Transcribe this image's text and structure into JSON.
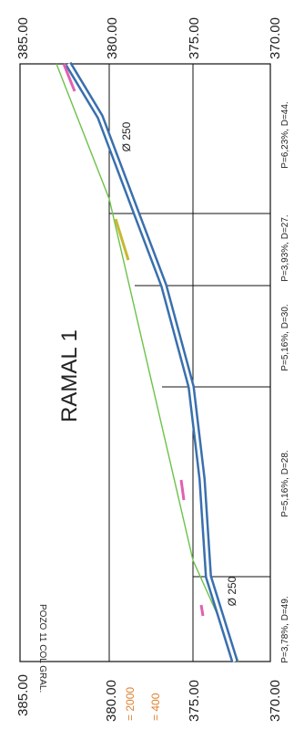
{
  "title": "RAMAL 1",
  "elevation_labels": {
    "top": [
      "385.00",
      "380.00",
      "375.00",
      "370.00"
    ],
    "bottom": [
      "385.00",
      "380.00",
      "375.00",
      "370.00"
    ]
  },
  "scale_notes": [
    "= 2000",
    "= 400"
  ],
  "origin_label": "POZO 11 COL GRAL.",
  "pipe_labels": [
    "Ø 250",
    "Ø 250"
  ],
  "segment_labels": [
    "P=3,78%, D=49.",
    "P=5,16%, D=28.",
    "P=5,16%, D=30.",
    "P=3,93%, D=27.",
    "P=6,23%, D=44."
  ],
  "colors": {
    "pipe": "#3a6fae",
    "pipe_fill": "#ffffff",
    "terrain": "#6cc24a",
    "grid": "#111111",
    "pink_marker": "#e060b0",
    "yellow_marker": "#c8b832",
    "scale_note": "#e08030"
  }
}
